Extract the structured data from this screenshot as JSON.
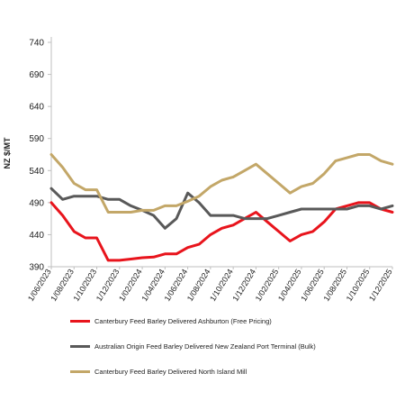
{
  "chart_data": {
    "type": "line",
    "title": "",
    "xlabel": "",
    "ylabel": "NZ $/MT",
    "ylim": [
      390,
      740
    ],
    "yticks": [
      390,
      440,
      490,
      540,
      590,
      640,
      690,
      740
    ],
    "grid": false,
    "legend_position": "bottom",
    "x": [
      "1/06/2023",
      "1/07/2023",
      "1/08/2023",
      "1/09/2023",
      "1/10/2023",
      "1/11/2023",
      "1/12/2023",
      "1/01/2024",
      "1/02/2024",
      "1/03/2024",
      "1/04/2024",
      "1/05/2024",
      "1/06/2024",
      "1/07/2024",
      "1/08/2024",
      "1/09/2024",
      "1/10/2024",
      "1/11/2024",
      "1/12/2024",
      "1/01/2025",
      "1/02/2025",
      "1/03/2025",
      "1/04/2025",
      "1/05/2025",
      "1/06/2025",
      "1/07/2025",
      "1/08/2025",
      "1/09/2025",
      "1/10/2025",
      "1/11/2025",
      "1/12/2025"
    ],
    "xtick_labels": [
      "1/06/2023",
      "1/08/2023",
      "1/10/2023",
      "1/12/2023",
      "1/02/2024",
      "1/04/2024",
      "1/06/2024",
      "1/08/2024",
      "1/10/2024",
      "1/12/2024",
      "1/02/2025",
      "1/04/2025",
      "1/06/2025",
      "1/08/2025",
      "1/10/2025",
      "1/12/2025"
    ],
    "series": [
      {
        "name": "Canterbury Feed Barley Delivered Ashburton (Free Pricing)",
        "color": "#e8141c",
        "values": [
          490,
          470,
          445,
          435,
          435,
          400,
          400,
          402,
          404,
          405,
          410,
          410,
          420,
          425,
          440,
          450,
          455,
          465,
          475,
          460,
          445,
          430,
          440,
          445,
          460,
          480,
          485,
          490,
          490,
          480,
          475
        ]
      },
      {
        "name": "Australian Origin Feed Barley Delivered New Zealand Port Terminal (Bulk)",
        "color": "#595959",
        "values": [
          512,
          495,
          500,
          500,
          500,
          495,
          495,
          485,
          478,
          470,
          450,
          465,
          505,
          490,
          470,
          470,
          470,
          465,
          465,
          465,
          470,
          475,
          480,
          480,
          480,
          480,
          480,
          485,
          485,
          480,
          485
        ]
      },
      {
        "name": "Canterbury Feed Barley Delivered North Island Mill",
        "color": "#c3a768",
        "values": [
          565,
          545,
          520,
          510,
          510,
          475,
          475,
          475,
          478,
          478,
          485,
          485,
          492,
          500,
          515,
          525,
          530,
          540,
          550,
          535,
          520,
          505,
          515,
          520,
          535,
          555,
          560,
          565,
          565,
          555,
          550
        ]
      }
    ]
  }
}
